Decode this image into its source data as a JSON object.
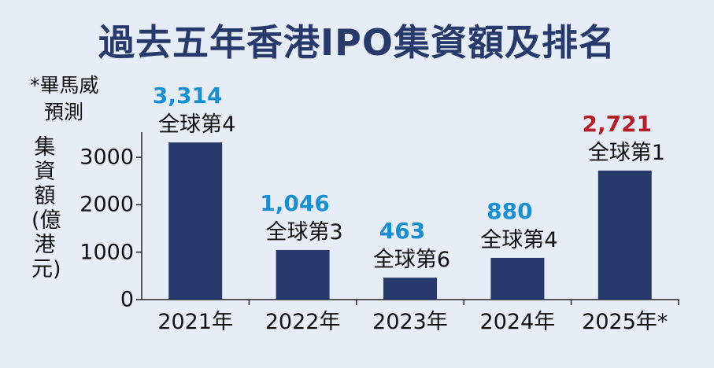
{
  "title": "過去五年香港IPO集資額及排名",
  "note": {
    "line1": "*畢馬威",
    "line2": "預測"
  },
  "colors": {
    "bar": "#283a6b",
    "value": "#1a8fd0",
    "forecast_value": "#b3202a",
    "axis": "#222222"
  },
  "chart_data": {
    "type": "bar",
    "title": "過去五年香港IPO集資額及排名",
    "ylabel": "集資額(億港元)",
    "xlabel": "",
    "ylim": [
      0,
      3300
    ],
    "yticks": [
      0,
      1000,
      2000,
      3000
    ],
    "categories": [
      "2021年",
      "2022年",
      "2023年",
      "2024年",
      "2025年*"
    ],
    "values": [
      3314,
      1046,
      463,
      880,
      2721
    ],
    "value_labels": [
      "3,314",
      "1,046",
      "463",
      "880",
      "2,721"
    ],
    "rank_labels": [
      "全球第4",
      "全球第3",
      "全球第6",
      "全球第4",
      "全球第1"
    ],
    "forecast": [
      false,
      false,
      false,
      false,
      true
    ],
    "grid": false,
    "legend": "none"
  }
}
